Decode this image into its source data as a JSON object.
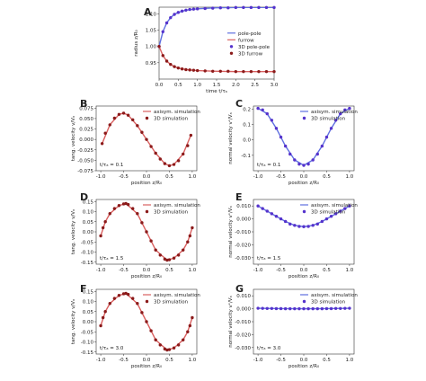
{
  "figure": {
    "background": "#ffffff",
    "colors": {
      "axisym_red": "#d96060",
      "furrow_red": "#b22222",
      "marker_red": "#8b1a1a",
      "axisym_blue": "#5f6fe0",
      "marker_blue": "#5533cc"
    }
  },
  "chart_data": [
    {
      "panel": "A",
      "type": "scatter",
      "xlabel": "time t/τₐ",
      "ylabel": "radius z/R₀",
      "xlim": [
        0.0,
        3.0
      ],
      "ylim": [
        0.9,
        1.12
      ],
      "xticks": [
        "0.0",
        "0.5",
        "1.0",
        "1.5",
        "2.0",
        "2.5",
        "3.0"
      ],
      "yticks": [
        "0.95",
        "1.00",
        "1.05",
        "1.10"
      ],
      "legend_location": "center-right",
      "series": [
        {
          "name": "pole-pole",
          "kind": "line",
          "color": "#5f6fe0",
          "x": [
            0,
            0.1,
            0.2,
            0.3,
            0.4,
            0.5,
            0.7,
            1.0,
            1.5,
            2.0,
            2.5,
            3.0
          ],
          "y": [
            1.0,
            1.045,
            1.072,
            1.088,
            1.098,
            1.104,
            1.111,
            1.115,
            1.118,
            1.119,
            1.119,
            1.119
          ]
        },
        {
          "name": "furrow",
          "kind": "line",
          "color": "#d96060",
          "x": [
            0,
            0.1,
            0.2,
            0.3,
            0.4,
            0.5,
            0.7,
            1.0,
            1.5,
            2.0,
            2.5,
            3.0
          ],
          "y": [
            1.0,
            0.972,
            0.955,
            0.945,
            0.938,
            0.934,
            0.929,
            0.926,
            0.924,
            0.923,
            0.923,
            0.923
          ]
        },
        {
          "name": "3D pole-pole",
          "kind": "points",
          "color": "#5533cc",
          "x": [
            0,
            0.1,
            0.2,
            0.3,
            0.4,
            0.5,
            0.6,
            0.7,
            0.8,
            0.9,
            1.0,
            1.2,
            1.4,
            1.6,
            1.8,
            2.0,
            2.2,
            2.4,
            2.6,
            2.8,
            3.0
          ],
          "y": [
            1.0,
            1.045,
            1.072,
            1.088,
            1.098,
            1.104,
            1.108,
            1.111,
            1.113,
            1.114,
            1.115,
            1.116,
            1.117,
            1.118,
            1.118,
            1.119,
            1.119,
            1.119,
            1.119,
            1.119,
            1.119
          ]
        },
        {
          "name": "3D furrow",
          "kind": "points",
          "color": "#8b1a1a",
          "x": [
            0,
            0.1,
            0.2,
            0.3,
            0.4,
            0.5,
            0.6,
            0.7,
            0.8,
            0.9,
            1.0,
            1.2,
            1.4,
            1.6,
            1.8,
            2.0,
            2.2,
            2.4,
            2.6,
            2.8,
            3.0
          ],
          "y": [
            1.0,
            0.972,
            0.955,
            0.945,
            0.938,
            0.934,
            0.931,
            0.929,
            0.928,
            0.927,
            0.926,
            0.925,
            0.924,
            0.924,
            0.924,
            0.923,
            0.923,
            0.923,
            0.923,
            0.923,
            0.923
          ]
        }
      ]
    },
    {
      "panel": "B",
      "type": "scatter",
      "xlabel": "position z/R₀",
      "ylabel": "tang. velocity v/Vₐ",
      "xlim": [
        -1.1,
        1.1
      ],
      "ylim": [
        -0.075,
        0.08
      ],
      "xticks": [
        "-1.0",
        "-0.5",
        "0.0",
        "0.5",
        "1.0"
      ],
      "yticks": [
        "0.075",
        "0.050",
        "0.025",
        "0.000",
        "-0.025",
        "-0.050",
        "-0.075"
      ],
      "annotation": "t/τₐ = 0.1",
      "legend_location": "top-right",
      "series": [
        {
          "name": "axisym. simulation",
          "kind": "line",
          "color": "#d96060",
          "x": [
            -0.97,
            -0.8,
            -0.6,
            -0.5,
            -0.4,
            -0.2,
            0.0,
            0.2,
            0.4,
            0.5,
            0.6,
            0.8,
            0.97
          ],
          "y": [
            -0.01,
            0.035,
            0.06,
            0.063,
            0.058,
            0.033,
            0.0,
            -0.033,
            -0.058,
            -0.063,
            -0.06,
            -0.035,
            0.01
          ]
        },
        {
          "name": "3D simulation",
          "kind": "points",
          "color": "#8b1a1a",
          "x": [
            -0.97,
            -0.9,
            -0.8,
            -0.7,
            -0.6,
            -0.5,
            -0.4,
            -0.3,
            -0.2,
            -0.1,
            0.0,
            0.1,
            0.2,
            0.3,
            0.4,
            0.5,
            0.6,
            0.7,
            0.8,
            0.9,
            0.97
          ],
          "y": [
            -0.01,
            0.015,
            0.035,
            0.051,
            0.06,
            0.063,
            0.058,
            0.047,
            0.033,
            0.017,
            0.0,
            -0.017,
            -0.033,
            -0.047,
            -0.058,
            -0.063,
            -0.06,
            -0.051,
            -0.035,
            -0.015,
            0.01
          ]
        }
      ]
    },
    {
      "panel": "C",
      "type": "scatter",
      "xlabel": "position z/R₀",
      "ylabel": "normal velocity vⁿ/Vₐ",
      "xlim": [
        -1.1,
        1.1
      ],
      "ylim": [
        -0.2,
        0.22
      ],
      "xticks": [
        "-1.0",
        "-0.5",
        "0.0",
        "0.5",
        "1.0"
      ],
      "yticks": [
        "0.2",
        "0.1",
        "0.0",
        "-0.1"
      ],
      "annotation": "t/τₐ = 0.1",
      "legend_location": "top-right",
      "series": [
        {
          "name": "axisym. simulation",
          "kind": "line",
          "color": "#5f6fe0",
          "x": [
            -1.0,
            -0.8,
            -0.6,
            -0.4,
            -0.2,
            0.0,
            0.2,
            0.4,
            0.6,
            0.8,
            1.0
          ],
          "y": [
            0.205,
            0.17,
            0.075,
            -0.04,
            -0.13,
            -0.165,
            -0.13,
            -0.04,
            0.075,
            0.17,
            0.205
          ]
        },
        {
          "name": "3D simulation",
          "kind": "points",
          "color": "#5533cc",
          "x": [
            -1.0,
            -0.9,
            -0.8,
            -0.7,
            -0.6,
            -0.5,
            -0.4,
            -0.3,
            -0.2,
            -0.1,
            0.0,
            0.1,
            0.2,
            0.3,
            0.4,
            0.5,
            0.6,
            0.7,
            0.8,
            0.9,
            1.0
          ],
          "y": [
            0.205,
            0.195,
            0.17,
            0.128,
            0.075,
            0.018,
            -0.04,
            -0.092,
            -0.13,
            -0.157,
            -0.165,
            -0.157,
            -0.13,
            -0.092,
            -0.04,
            0.018,
            0.075,
            0.128,
            0.17,
            0.195,
            0.205
          ]
        }
      ]
    },
    {
      "panel": "D",
      "type": "scatter",
      "xlabel": "position z/R₀",
      "ylabel": "tang. velocity v/Vₐ",
      "xlim": [
        -1.1,
        1.1
      ],
      "ylim": [
        -0.16,
        0.16
      ],
      "xticks": [
        "-1.0",
        "-0.5",
        "0.0",
        "0.5",
        "1.0"
      ],
      "yticks": [
        "0.15",
        "0.10",
        "0.05",
        "0.00",
        "-0.05",
        "-0.10",
        "-0.15"
      ],
      "annotation": "t/τₐ = 1.5",
      "legend_location": "top-right",
      "series": [
        {
          "name": "axisym. simulation",
          "kind": "line",
          "color": "#d96060",
          "x": [
            -1.0,
            -0.9,
            -0.8,
            -0.6,
            -0.45,
            -0.2,
            0.0,
            0.2,
            0.45,
            0.6,
            0.8,
            0.9,
            1.0
          ],
          "y": [
            -0.02,
            0.05,
            0.09,
            0.13,
            0.14,
            0.09,
            0.0,
            -0.09,
            -0.14,
            -0.13,
            -0.09,
            -0.05,
            0.02
          ]
        },
        {
          "name": "3D simulation",
          "kind": "points",
          "color": "#8b1a1a",
          "x": [
            -1.0,
            -0.95,
            -0.9,
            -0.8,
            -0.7,
            -0.6,
            -0.5,
            -0.45,
            -0.4,
            -0.3,
            -0.2,
            -0.1,
            0.0,
            0.1,
            0.2,
            0.3,
            0.4,
            0.45,
            0.5,
            0.6,
            0.7,
            0.8,
            0.9,
            0.95,
            1.0
          ],
          "y": [
            -0.02,
            0.02,
            0.05,
            0.09,
            0.115,
            0.13,
            0.138,
            0.14,
            0.135,
            0.115,
            0.09,
            0.045,
            0.0,
            -0.045,
            -0.09,
            -0.115,
            -0.135,
            -0.14,
            -0.138,
            -0.13,
            -0.115,
            -0.09,
            -0.05,
            -0.02,
            0.02
          ]
        }
      ]
    },
    {
      "panel": "E",
      "type": "scatter",
      "xlabel": "position z/R₀",
      "ylabel": "normal velocity vⁿ/Vₐ",
      "xlim": [
        -1.1,
        1.1
      ],
      "ylim": [
        -0.035,
        0.015
      ],
      "xticks": [
        "-1.0",
        "-0.5",
        "0.0",
        "0.5",
        "1.0"
      ],
      "yticks": [
        "0.010",
        "0.000",
        "-0.010",
        "-0.020",
        "-0.030"
      ],
      "annotation": "t/τₐ = 1.5",
      "legend_location": "top-right",
      "series": [
        {
          "name": "axisym. simulation",
          "kind": "line",
          "color": "#5f6fe0",
          "x": [
            -1.0,
            -0.8,
            -0.6,
            -0.4,
            -0.2,
            0.0,
            0.2,
            0.4,
            0.6,
            0.8,
            1.0
          ],
          "y": [
            0.01,
            0.006,
            0.002,
            -0.002,
            -0.005,
            -0.006,
            -0.005,
            -0.002,
            0.002,
            0.006,
            0.01
          ]
        },
        {
          "name": "3D simulation",
          "kind": "points",
          "color": "#5533cc",
          "x": [
            -1.0,
            -0.9,
            -0.8,
            -0.7,
            -0.6,
            -0.5,
            -0.4,
            -0.3,
            -0.2,
            -0.1,
            0.0,
            0.1,
            0.2,
            0.3,
            0.4,
            0.5,
            0.6,
            0.7,
            0.8,
            0.9,
            1.0
          ],
          "y": [
            0.01,
            0.008,
            0.006,
            0.004,
            0.002,
            0.0,
            -0.002,
            -0.004,
            -0.005,
            -0.0058,
            -0.006,
            -0.0058,
            -0.005,
            -0.004,
            -0.002,
            0.0,
            0.002,
            0.004,
            0.006,
            0.008,
            0.01
          ]
        }
      ]
    },
    {
      "panel": "F",
      "type": "scatter",
      "xlabel": "position z/R₀",
      "ylabel": "tang. velocity v/Vₐ",
      "xlim": [
        -1.1,
        1.1
      ],
      "ylim": [
        -0.16,
        0.16
      ],
      "xticks": [
        "-1.0",
        "-0.5",
        "0.0",
        "0.5",
        "1.0"
      ],
      "yticks": [
        "0.15",
        "0.10",
        "0.05",
        "0.00",
        "-0.05",
        "-0.10",
        "-0.15"
      ],
      "annotation": "t/τₐ = 3.0",
      "legend_location": "top-right",
      "series": [
        {
          "name": "axisym. simulation",
          "kind": "line",
          "color": "#d96060",
          "x": [
            -1.0,
            -0.9,
            -0.8,
            -0.6,
            -0.45,
            -0.2,
            0.0,
            0.2,
            0.45,
            0.6,
            0.8,
            0.9,
            1.0
          ],
          "y": [
            -0.02,
            0.05,
            0.09,
            0.13,
            0.14,
            0.09,
            0.0,
            -0.09,
            -0.14,
            -0.13,
            -0.09,
            -0.05,
            0.02
          ]
        },
        {
          "name": "3D simulation",
          "kind": "points",
          "color": "#8b1a1a",
          "x": [
            -1.0,
            -0.95,
            -0.9,
            -0.8,
            -0.7,
            -0.6,
            -0.5,
            -0.45,
            -0.4,
            -0.3,
            -0.2,
            -0.1,
            0.0,
            0.1,
            0.2,
            0.3,
            0.4,
            0.45,
            0.5,
            0.6,
            0.7,
            0.8,
            0.9,
            0.95,
            1.0
          ],
          "y": [
            -0.02,
            0.02,
            0.05,
            0.09,
            0.115,
            0.13,
            0.138,
            0.14,
            0.135,
            0.115,
            0.09,
            0.045,
            0.0,
            -0.045,
            -0.09,
            -0.115,
            -0.135,
            -0.14,
            -0.138,
            -0.13,
            -0.115,
            -0.09,
            -0.05,
            -0.02,
            0.02
          ]
        }
      ]
    },
    {
      "panel": "G",
      "type": "scatter",
      "xlabel": "position z/R₀",
      "ylabel": "normal velocity vⁿ/Vₐ",
      "xlim": [
        -1.1,
        1.1
      ],
      "ylim": [
        -0.035,
        0.015
      ],
      "xticks": [
        "-1.0",
        "-0.5",
        "0.0",
        "0.5",
        "1.0"
      ],
      "yticks": [
        "0.010",
        "0.000",
        "-0.010",
        "-0.020",
        "-0.030"
      ],
      "annotation": "t/τₐ = 3.0",
      "legend_location": "top-right",
      "series": [
        {
          "name": "axisym. simulation",
          "kind": "line",
          "color": "#5f6fe0",
          "x": [
            -1.0,
            -0.5,
            0.0,
            0.5,
            1.0
          ],
          "y": [
            0.0004,
            0.0001,
            0.0,
            0.0001,
            0.0004
          ]
        },
        {
          "name": "3D simulation",
          "kind": "points",
          "color": "#5533cc",
          "x": [
            -1.0,
            -0.9,
            -0.8,
            -0.7,
            -0.6,
            -0.5,
            -0.4,
            -0.3,
            -0.2,
            -0.1,
            0.0,
            0.1,
            0.2,
            0.3,
            0.4,
            0.5,
            0.6,
            0.7,
            0.8,
            0.9,
            1.0
          ],
          "y": [
            0.0004,
            0.0003,
            0.0002,
            0.0002,
            0.0001,
            0.0001,
            0.0,
            0.0,
            0.0,
            0.0,
            0.0,
            0.0,
            0.0,
            0.0,
            0.0,
            0.0001,
            0.0001,
            0.0002,
            0.0002,
            0.0003,
            0.0004
          ]
        }
      ]
    }
  ]
}
